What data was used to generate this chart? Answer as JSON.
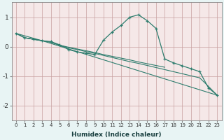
{
  "xlabel": "Humidex (Indice chaleur)",
  "background_color": "#e8f4f4",
  "plot_bg_color": "#f5e8e8",
  "grid_color": "#c8a0a0",
  "line_color": "#2e7d6e",
  "xlim": [
    -0.5,
    23.5
  ],
  "ylim": [
    -2.5,
    1.5
  ],
  "xticks": [
    0,
    1,
    2,
    3,
    4,
    5,
    6,
    7,
    8,
    9,
    10,
    11,
    12,
    13,
    14,
    15,
    16,
    17,
    18,
    19,
    20,
    21,
    22,
    23
  ],
  "yticks": [
    -2,
    -1,
    0,
    1
  ],
  "curve_x": [
    0,
    1,
    2,
    3,
    4,
    5,
    6,
    7,
    8,
    9,
    10,
    11,
    12,
    13,
    14,
    15,
    16,
    17,
    18,
    19,
    20,
    21,
    22,
    23
  ],
  "curve_y": [
    0.45,
    0.3,
    0.25,
    0.2,
    0.17,
    0.06,
    -0.1,
    -0.18,
    -0.22,
    -0.27,
    0.22,
    0.5,
    0.72,
    1.0,
    1.08,
    0.88,
    0.62,
    -0.42,
    -0.55,
    -0.65,
    -0.75,
    -0.85,
    -1.4,
    -1.65
  ],
  "line1_x": [
    0,
    3,
    23
  ],
  "line1_y": [
    0.45,
    0.2,
    -1.65
  ],
  "line2_x": [
    0,
    1,
    2,
    3,
    4,
    5,
    6,
    7,
    8,
    9,
    10,
    11,
    12,
    13,
    14,
    15,
    16,
    17
  ],
  "line2_y": [
    0.45,
    0.3,
    0.25,
    0.2,
    0.15,
    0.05,
    -0.02,
    -0.08,
    -0.14,
    -0.2,
    -0.27,
    -0.33,
    -0.39,
    -0.45,
    -0.52,
    -0.58,
    -0.64,
    -0.7
  ],
  "line3_x": [
    0,
    1,
    2,
    3,
    4,
    5,
    6,
    7,
    8,
    9,
    10,
    11,
    12,
    13,
    14,
    15,
    16,
    17,
    18,
    19,
    20,
    21,
    22,
    23
  ],
  "line3_y": [
    0.45,
    0.3,
    0.25,
    0.2,
    0.15,
    0.04,
    -0.04,
    -0.1,
    -0.17,
    -0.23,
    -0.3,
    -0.37,
    -0.44,
    -0.51,
    -0.57,
    -0.64,
    -0.71,
    -0.78,
    -0.85,
    -0.92,
    -0.99,
    -1.06,
    -1.35,
    -1.65
  ]
}
